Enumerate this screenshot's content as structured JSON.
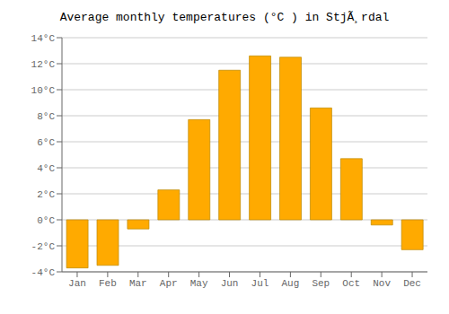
{
  "chart_data": {
    "type": "bar",
    "title": "Average monthly temperatures (°C ) in StjÃ¸rdal",
    "categories": [
      "Jan",
      "Feb",
      "Mar",
      "Apr",
      "May",
      "Jun",
      "Jul",
      "Aug",
      "Sep",
      "Oct",
      "Nov",
      "Dec"
    ],
    "values": [
      -3.7,
      -3.5,
      -0.7,
      2.3,
      7.7,
      11.5,
      12.6,
      12.5,
      8.6,
      4.7,
      -0.4,
      -2.3
    ],
    "color": "#FFAA00",
    "ylim": [
      -4,
      14
    ],
    "yticks": [
      {
        "value": -4,
        "label": "-4°C"
      },
      {
        "value": -2,
        "label": "-2°C"
      },
      {
        "value": 0,
        "label": "0°C"
      },
      {
        "value": 2,
        "label": "2°C"
      },
      {
        "value": 4,
        "label": "4°C"
      },
      {
        "value": 6,
        "label": "6°C"
      },
      {
        "value": 8,
        "label": "8°C"
      },
      {
        "value": 10,
        "label": "10°C"
      },
      {
        "value": 12,
        "label": "12°C"
      },
      {
        "value": 14,
        "label": "14°C"
      }
    ],
    "grid": true
  }
}
